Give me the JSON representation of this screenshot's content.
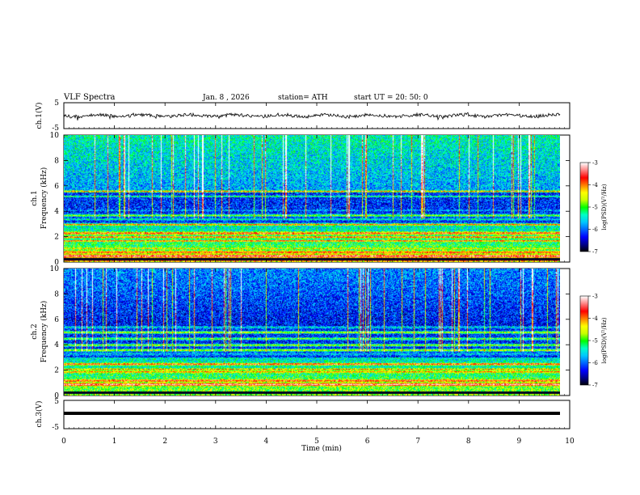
{
  "header": {
    "title": "VLF  Spectra",
    "date": "Jan.  8  , 2026",
    "station": "station= ATH",
    "start_ut": "start  UT  =   20: 50: 0"
  },
  "chart_data": [
    {
      "type": "line",
      "panel": "ch1-waveform",
      "ylabel": "ch.1(V)",
      "yticks": [
        "5",
        "-5"
      ],
      "ylim": [
        -5,
        5
      ],
      "xlim": [
        0,
        10
      ],
      "color": "#000000"
    },
    {
      "type": "heatmap",
      "panel": "ch1-spectrogram",
      "ylabel": [
        "ch.1",
        "Frequency  (kHz)"
      ],
      "yticks": [
        "10",
        "8",
        "6",
        "4",
        "2",
        "0"
      ],
      "ylim": [
        0,
        10
      ],
      "xlim": [
        0,
        9.8
      ],
      "colorbar": {
        "label": "log(PSD)(V²/Hz)",
        "ticks": [
          "-3",
          "-4",
          "-5",
          "-6",
          "-7"
        ],
        "range": [
          -7,
          -3
        ]
      },
      "bands_khz": [
        0.2,
        0.5,
        0.8,
        1.1,
        1.7,
        2.0,
        2.3,
        3.0,
        3.4,
        3.7,
        4.1,
        5.2,
        5.6
      ]
    },
    {
      "type": "heatmap",
      "panel": "ch2-spectrogram",
      "ylabel": [
        "ch.2",
        "Frequency  (kHz)"
      ],
      "yticks": [
        "10",
        "8",
        "6",
        "4",
        "2",
        "0"
      ],
      "ylim": [
        0,
        10
      ],
      "xlim": [
        0,
        9.8
      ],
      "colorbar": {
        "label": "log(PSD)(V²/Hz)",
        "ticks": [
          "-3",
          "-4",
          "-5",
          "-6",
          "-7"
        ],
        "range": [
          -7,
          -3
        ]
      },
      "bands_khz": [
        0.3,
        0.9,
        1.2,
        1.9,
        2.1,
        2.5,
        3.3,
        3.6,
        4.0,
        4.5,
        5.0,
        5.4
      ]
    },
    {
      "type": "line",
      "panel": "ch3-waveform",
      "ylabel": "ch.3(V)",
      "yticks": [
        "5",
        "-5"
      ],
      "ylim": [
        -5,
        5
      ],
      "xlim": [
        0,
        10
      ],
      "color": "#000000"
    }
  ],
  "xaxis": {
    "label": "Time  (min)",
    "ticks": [
      "0",
      "1",
      "2",
      "3",
      "4",
      "5",
      "6",
      "7",
      "8",
      "9",
      "10"
    ],
    "range": [
      0,
      10
    ]
  },
  "colormap": [
    "#000000",
    "#00008b",
    "#0000ff",
    "#0064ff",
    "#00c8ff",
    "#00ffc8",
    "#00ff00",
    "#c8ff00",
    "#ffff00",
    "#ff8000",
    "#ff0000",
    "#ff8080",
    "#ffffff"
  ]
}
